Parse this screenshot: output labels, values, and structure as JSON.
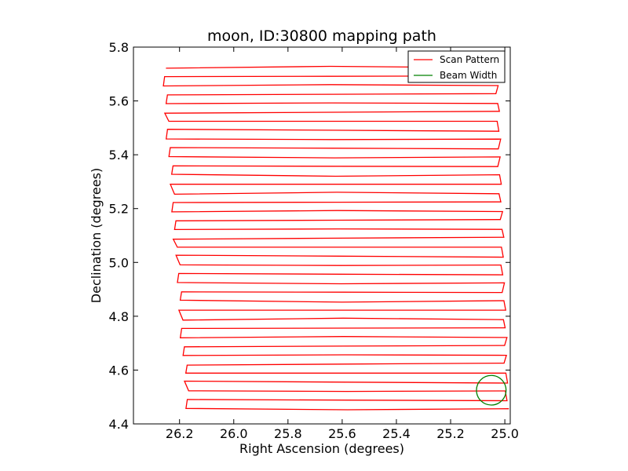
{
  "chart_data": {
    "type": "line",
    "title": "moon, ID:30800 mapping path",
    "xlabel": "Right Ascension (degrees)",
    "ylabel": "Declination (degrees)",
    "xlim": [
      26.37,
      24.98
    ],
    "ylim": [
      4.4,
      5.8
    ],
    "x_inverted": true,
    "xticks": [
      26.2,
      26.0,
      25.8,
      25.6,
      25.4,
      25.2,
      25.0
    ],
    "xtick_labels": [
      "26.2",
      "26.0",
      "25.8",
      "25.6",
      "25.4",
      "25.2",
      "25.0"
    ],
    "yticks": [
      4.4,
      4.6,
      4.8,
      5.0,
      5.2,
      5.4,
      5.6,
      5.8
    ],
    "ytick_labels": [
      "4.4",
      "4.6",
      "4.8",
      "5.0",
      "5.2",
      "5.4",
      "5.6",
      "5.8"
    ],
    "grid": false,
    "legend_position": "top-right",
    "series": [
      {
        "name": "Scan Pattern",
        "color": "#ff0000",
        "style": "line",
        "raster": {
          "dec_start": 5.725,
          "dec_end": 4.455,
          "rows": 39,
          "left_ra_top": 26.26,
          "left_ra_bottom": 26.17,
          "right_ra_top": 25.03,
          "right_ra_bottom": 24.99
        }
      },
      {
        "name": "Beam Width",
        "color": "#008000",
        "style": "circle",
        "center": [
          25.05,
          4.525
        ],
        "radius_deg": 0.055
      }
    ]
  }
}
